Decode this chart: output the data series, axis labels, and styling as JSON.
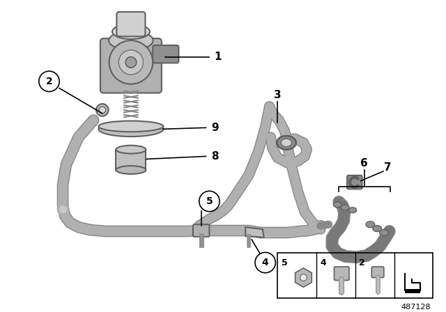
{
  "background_color": "#ffffff",
  "part_number": "487128",
  "tube_color": "#a8a8a8",
  "tube_color_dark": "#707878",
  "tube_lw": 8,
  "label_fs": 11,
  "leader_lw": 1.2
}
